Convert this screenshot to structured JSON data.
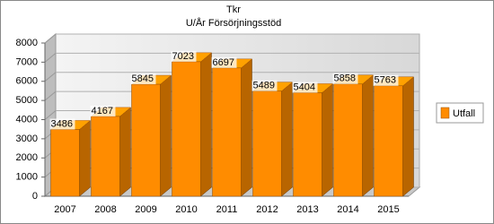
{
  "chart_data": {
    "type": "bar3d",
    "title": "Tkr",
    "subtitle": "U/År Försörjningsstöd",
    "categories": [
      "2007",
      "2008",
      "2009",
      "2010",
      "2011",
      "2012",
      "2013",
      "2014",
      "2015"
    ],
    "series": [
      {
        "name": "Utfall",
        "color": "#ff8c00",
        "values": [
          3486,
          4167,
          5845,
          7023,
          6697,
          5489,
          5404,
          5858,
          5763
        ]
      }
    ],
    "ylim": [
      0,
      8000
    ],
    "yticks": [
      0,
      1000,
      2000,
      3000,
      4000,
      5000,
      6000,
      7000,
      8000
    ],
    "grid": true,
    "legend": "right"
  }
}
